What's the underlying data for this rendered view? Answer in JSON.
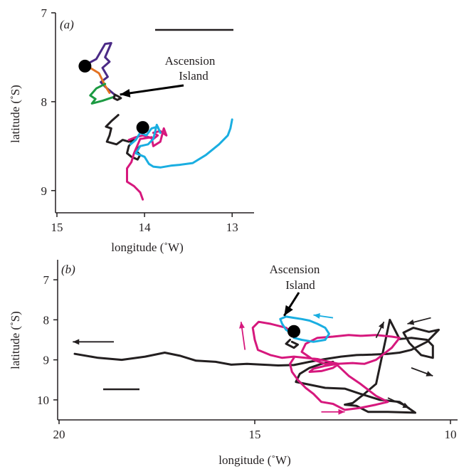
{
  "chart_data": [
    {
      "panel": "(a)",
      "type": "line",
      "xlabel": "longitude (˚W)",
      "ylabel": "latitude (˚S)",
      "x_axis_reversed": true,
      "y_axis_reversed": true,
      "xlim": [
        15.0,
        12.75
      ],
      "ylim": [
        7.0,
        9.25
      ],
      "xticks": [
        15,
        14,
        13
      ],
      "yticks": [
        7,
        8,
        9
      ],
      "scale_bar": true,
      "annotation": {
        "text": [
          "Ascension",
          "Island"
        ],
        "point": [
          14.28,
          7.92
        ]
      },
      "markers": [
        {
          "name": "start-a-upper",
          "x": 14.68,
          "y": 7.6
        },
        {
          "name": "start-a-lower",
          "x": 14.02,
          "y": 8.29
        }
      ],
      "series": [
        {
          "color": "#4b2a86",
          "points": [
            [
              14.7,
              7.6
            ],
            [
              14.55,
              7.52
            ],
            [
              14.45,
              7.35
            ],
            [
              14.38,
              7.34
            ],
            [
              14.45,
              7.5
            ],
            [
              14.4,
              7.55
            ],
            [
              14.48,
              7.62
            ],
            [
              14.42,
              7.72
            ],
            [
              14.5,
              7.78
            ],
            [
              14.44,
              7.84
            ],
            [
              14.33,
              7.93
            ]
          ]
        },
        {
          "color": "#e37222",
          "points": [
            [
              14.62,
              7.62
            ],
            [
              14.52,
              7.68
            ],
            [
              14.45,
              7.82
            ],
            [
              14.4,
              7.9
            ]
          ]
        },
        {
          "color": "#1c9a42",
          "points": [
            [
              14.45,
              7.8
            ],
            [
              14.55,
              7.85
            ],
            [
              14.62,
              7.93
            ],
            [
              14.56,
              7.97
            ],
            [
              14.6,
              8.02
            ],
            [
              14.48,
              7.99
            ],
            [
              14.36,
              7.95
            ]
          ]
        },
        {
          "color": "#231f20",
          "points": [
            [
              14.34,
              7.92
            ],
            [
              14.3,
              7.94
            ],
            [
              14.27,
              7.96
            ],
            [
              14.31,
              7.98
            ],
            [
              14.35,
              7.96
            ],
            [
              14.34,
              7.92
            ]
          ]
        },
        {
          "color": "#231f20",
          "points": [
            [
              14.3,
              8.15
            ],
            [
              14.38,
              8.22
            ],
            [
              14.44,
              8.28
            ],
            [
              14.38,
              8.3
            ],
            [
              14.4,
              8.38
            ],
            [
              14.43,
              8.45
            ],
            [
              14.32,
              8.48
            ],
            [
              14.25,
              8.43
            ],
            [
              14.18,
              8.45
            ],
            [
              14.12,
              8.43
            ],
            [
              14.18,
              8.5
            ],
            [
              14.2,
              8.58
            ],
            [
              14.15,
              8.62
            ],
            [
              14.08,
              8.65
            ],
            [
              14.05,
              8.6
            ],
            [
              14.1,
              8.55
            ],
            [
              14.05,
              8.5
            ]
          ]
        },
        {
          "color": "#d6187d",
          "points": [
            [
              14.18,
              8.43
            ],
            [
              14.1,
              8.4
            ],
            [
              14.02,
              8.38
            ],
            [
              13.95,
              8.4
            ],
            [
              13.9,
              8.42
            ],
            [
              13.85,
              8.38
            ],
            [
              13.9,
              8.35
            ],
            [
              13.82,
              8.33
            ],
            [
              13.75,
              8.38
            ],
            [
              13.78,
              8.3
            ],
            [
              13.82,
              8.45
            ],
            [
              13.9,
              8.5
            ],
            [
              13.92,
              8.4
            ],
            [
              14.05,
              8.42
            ],
            [
              14.12,
              8.58
            ],
            [
              14.15,
              8.68
            ],
            [
              14.2,
              8.75
            ],
            [
              14.2,
              8.82
            ],
            [
              14.2,
              8.9
            ],
            [
              14.12,
              8.95
            ],
            [
              14.05,
              9.02
            ],
            [
              14.02,
              9.1
            ]
          ]
        },
        {
          "color": "#1aaee1",
          "points": [
            [
              14.16,
              8.48
            ],
            [
              14.1,
              8.43
            ],
            [
              14.05,
              8.35
            ],
            [
              13.98,
              8.38
            ],
            [
              13.92,
              8.3
            ],
            [
              13.85,
              8.28
            ],
            [
              13.82,
              8.35
            ],
            [
              13.86,
              8.26
            ],
            [
              13.9,
              8.42
            ],
            [
              13.96,
              8.48
            ],
            [
              14.05,
              8.5
            ],
            [
              14.1,
              8.58
            ],
            [
              14.0,
              8.62
            ],
            [
              13.95,
              8.7
            ],
            [
              13.9,
              8.73
            ],
            [
              13.82,
              8.74
            ],
            [
              13.7,
              8.72
            ],
            [
              13.6,
              8.71
            ],
            [
              13.45,
              8.69
            ],
            [
              13.3,
              8.6
            ],
            [
              13.15,
              8.48
            ],
            [
              13.05,
              8.38
            ],
            [
              13.02,
              8.3
            ],
            [
              13.0,
              8.2
            ]
          ]
        }
      ]
    },
    {
      "panel": "(b)",
      "type": "line",
      "xlabel": "longitude (˚W)",
      "ylabel": "latitude (˚S)",
      "x_axis_reversed": true,
      "y_axis_reversed": true,
      "xlim": [
        20.0,
        10.0
      ],
      "ylim": [
        6.5,
        10.5
      ],
      "xticks": [
        20,
        15,
        10
      ],
      "yticks": [
        7,
        8,
        9,
        10
      ],
      "scale_bar": true,
      "annotation": {
        "text": [
          "Ascension",
          "Island"
        ],
        "point": [
          14.25,
          7.9
        ]
      },
      "markers": [
        {
          "name": "start-b",
          "x": 14.0,
          "y": 8.29
        }
      ],
      "series": [
        {
          "color": "#231f20",
          "points": [
            [
              19.6,
              8.85
            ],
            [
              19.0,
              8.95
            ],
            [
              18.4,
              9.0
            ],
            [
              17.8,
              8.92
            ],
            [
              17.3,
              8.82
            ],
            [
              16.9,
              8.9
            ],
            [
              16.5,
              9.02
            ],
            [
              16.0,
              9.05
            ],
            [
              15.6,
              9.12
            ],
            [
              15.2,
              9.1
            ],
            [
              14.8,
              9.12
            ],
            [
              14.4,
              9.14
            ],
            [
              14.0,
              9.13
            ],
            [
              13.6,
              9.05
            ],
            [
              13.2,
              8.98
            ],
            [
              12.8,
              8.92
            ],
            [
              12.4,
              8.88
            ],
            [
              12.0,
              8.87
            ],
            [
              11.6,
              8.85
            ],
            [
              11.3,
              8.82
            ],
            [
              11.0,
              8.75
            ],
            [
              10.6,
              8.55
            ],
            [
              10.3,
              8.25
            ],
            [
              10.55,
              8.3
            ],
            [
              10.95,
              8.2
            ],
            [
              11.2,
              8.32
            ],
            [
              11.05,
              8.58
            ],
            [
              10.75,
              8.88
            ],
            [
              10.45,
              8.95
            ],
            [
              10.45,
              8.65
            ],
            [
              10.6,
              8.5
            ],
            [
              11.0,
              8.45
            ],
            [
              11.3,
              8.48
            ],
            [
              11.55,
              8.0
            ],
            [
              11.9,
              9.6
            ],
            [
              12.2,
              9.85
            ],
            [
              12.5,
              10.08
            ],
            [
              12.7,
              10.12
            ],
            [
              12.4,
              10.15
            ],
            [
              12.1,
              10.3
            ],
            [
              11.6,
              10.3
            ],
            [
              10.9,
              10.32
            ],
            [
              11.3,
              10.05
            ],
            [
              11.8,
              10.0
            ],
            [
              12.3,
              9.85
            ],
            [
              12.7,
              9.72
            ],
            [
              13.2,
              9.7
            ],
            [
              13.7,
              9.6
            ],
            [
              13.95,
              9.55
            ],
            [
              13.85,
              9.35
            ],
            [
              13.6,
              9.2
            ],
            [
              13.3,
              9.1
            ],
            [
              13.0,
              9.05
            ]
          ]
        },
        {
          "color": "#d6187d",
          "points": [
            [
              14.0,
              8.35
            ],
            [
              14.2,
              8.2
            ],
            [
              14.6,
              8.1
            ],
            [
              14.9,
              8.05
            ],
            [
              15.05,
              8.2
            ],
            [
              15.0,
              8.5
            ],
            [
              14.92,
              8.75
            ],
            [
              14.6,
              8.88
            ],
            [
              14.3,
              8.95
            ],
            [
              14.0,
              8.92
            ],
            [
              13.7,
              8.95
            ],
            [
              13.4,
              8.98
            ],
            [
              13.1,
              9.05
            ],
            [
              12.85,
              9.1
            ],
            [
              13.0,
              9.2
            ],
            [
              13.3,
              9.28
            ],
            [
              13.6,
              9.3
            ],
            [
              13.5,
              9.22
            ],
            [
              13.2,
              9.15
            ],
            [
              12.9,
              9.1
            ],
            [
              12.5,
              9.08
            ],
            [
              12.2,
              9.1
            ],
            [
              11.9,
              9.0
            ],
            [
              11.5,
              8.7
            ],
            [
              11.3,
              8.45
            ],
            [
              11.5,
              8.42
            ],
            [
              11.9,
              8.38
            ],
            [
              12.3,
              8.4
            ],
            [
              12.6,
              8.38
            ],
            [
              13.0,
              8.42
            ],
            [
              13.4,
              8.45
            ],
            [
              13.7,
              8.6
            ],
            [
              13.8,
              8.8
            ],
            [
              13.5,
              9.0
            ],
            [
              13.2,
              9.1
            ],
            [
              12.9,
              9.12
            ],
            [
              12.6,
              9.4
            ],
            [
              12.3,
              9.6
            ],
            [
              11.9,
              9.9
            ],
            [
              11.6,
              10.05
            ],
            [
              11.9,
              10.12
            ],
            [
              12.3,
              10.2
            ],
            [
              12.7,
              10.25
            ],
            [
              13.0,
              10.1
            ],
            [
              13.3,
              10.05
            ],
            [
              13.5,
              9.85
            ],
            [
              13.7,
              9.7
            ],
            [
              13.9,
              9.5
            ],
            [
              14.05,
              9.3
            ],
            [
              14.1,
              9.1
            ],
            [
              14.0,
              8.95
            ]
          ]
        },
        {
          "color": "#1aaee1",
          "points": [
            [
              13.96,
              8.45
            ],
            [
              14.05,
              8.35
            ],
            [
              14.2,
              8.25
            ],
            [
              14.3,
              8.1
            ],
            [
              14.35,
              7.98
            ],
            [
              14.2,
              7.92
            ],
            [
              14.0,
              7.95
            ],
            [
              13.8,
              7.98
            ],
            [
              13.6,
              8.02
            ],
            [
              13.4,
              8.1
            ],
            [
              13.2,
              8.2
            ],
            [
              13.1,
              8.35
            ],
            [
              13.2,
              8.5
            ],
            [
              13.5,
              8.55
            ],
            [
              13.8,
              8.5
            ],
            [
              14.0,
              8.45
            ]
          ]
        },
        {
          "color": "#231f20",
          "points": [
            [
              14.1,
              8.5
            ],
            [
              14.2,
              8.6
            ],
            [
              14.0,
              8.7
            ],
            [
              13.9,
              8.62
            ],
            [
              14.05,
              8.55
            ]
          ]
        }
      ],
      "arrows": [
        {
          "color": "#231f20",
          "from": [
            18.6,
            8.55
          ],
          "to": [
            19.65,
            8.55
          ]
        },
        {
          "color": "#1aaee1",
          "from": [
            13.0,
            7.95
          ],
          "to": [
            13.5,
            7.88
          ]
        },
        {
          "color": "#d6187d",
          "from": [
            15.25,
            8.75
          ],
          "to": [
            15.35,
            8.05
          ]
        },
        {
          "color": "#d6187d",
          "from": [
            13.3,
            10.3
          ],
          "to": [
            12.7,
            10.3
          ]
        },
        {
          "color": "#231f20",
          "from": [
            11.9,
            8.45
          ],
          "to": [
            11.7,
            8.05
          ]
        },
        {
          "color": "#231f20",
          "from": [
            10.5,
            7.95
          ],
          "to": [
            11.1,
            8.1
          ]
        },
        {
          "color": "#231f20",
          "from": [
            11.0,
            9.2
          ],
          "to": [
            10.45,
            9.4
          ]
        },
        {
          "color": "#231f20",
          "from": [
            11.6,
            9.95
          ],
          "to": [
            11.05,
            10.2
          ]
        }
      ]
    }
  ]
}
